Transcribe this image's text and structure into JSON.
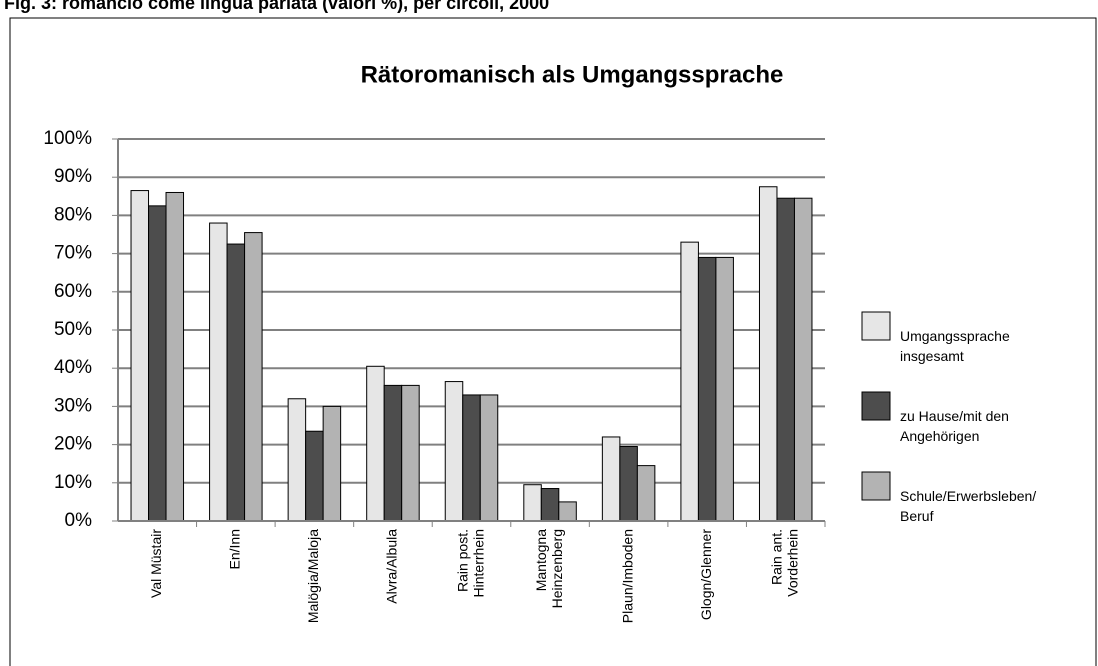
{
  "caption": "Fig. 3: romancio come lingua parlata (valori %), per circoli, 2000",
  "chart_data": {
    "type": "bar",
    "title": "Rätoromanisch als Umgangssprache",
    "categories": [
      "Val Müstair",
      "En/Inn",
      "Malögia/Maloja",
      "Alvra/Albula",
      "Rain post.\nHinterrhein",
      "Mantogna\nHeinzenberg",
      "Plaun/Imboden",
      "Glogn/Glenner",
      "Rain ant.\nVorderhein"
    ],
    "series": [
      {
        "name": "Umgangssprache\ninsgesamt",
        "color": "#e6e6e6",
        "values": [
          86.5,
          78,
          32,
          40.5,
          36.5,
          9.5,
          22,
          73,
          87.5
        ]
      },
      {
        "name": "zu Hause/mit den\nAngehörigen",
        "color": "#4d4d4d",
        "values": [
          82.5,
          72.5,
          23.5,
          35.5,
          33,
          8.5,
          19.5,
          69,
          84.5
        ]
      },
      {
        "name": "Schule/Erwerbsleben/\nBeruf",
        "color": "#b3b3b3",
        "values": [
          86,
          75.5,
          30,
          35.5,
          33,
          5,
          14.5,
          69,
          84.5
        ]
      }
    ],
    "ylim": [
      0,
      100
    ],
    "yticks": [
      {
        "value": 0,
        "label": "0%"
      },
      {
        "value": 10,
        "label": "10%"
      },
      {
        "value": 20,
        "label": "20%"
      },
      {
        "value": 30,
        "label": "30%"
      },
      {
        "value": 40,
        "label": "40%"
      },
      {
        "value": 50,
        "label": "50%"
      },
      {
        "value": 60,
        "label": "60%"
      },
      {
        "value": 70,
        "label": "70%"
      },
      {
        "value": 80,
        "label": "80%"
      },
      {
        "value": 90,
        "label": "90%"
      },
      {
        "value": 100,
        "label": "100%"
      }
    ],
    "grid": true,
    "legend": "right"
  }
}
